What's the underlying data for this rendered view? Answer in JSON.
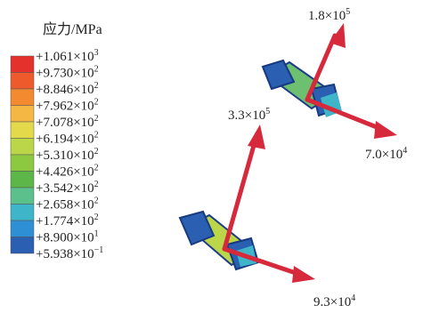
{
  "legend": {
    "title": "应力/MPa",
    "labels": [
      {
        "mantissa": "+1.061×10",
        "exponent": "3"
      },
      {
        "mantissa": "+9.730×10",
        "exponent": "2"
      },
      {
        "mantissa": "+8.846×10",
        "exponent": "2"
      },
      {
        "mantissa": "+7.962×10",
        "exponent": "2"
      },
      {
        "mantissa": "+7.078×10",
        "exponent": "2"
      },
      {
        "mantissa": "+6.194×10",
        "exponent": "2"
      },
      {
        "mantissa": "+5.310×10",
        "exponent": "2"
      },
      {
        "mantissa": "+4.426×10",
        "exponent": "2"
      },
      {
        "mantissa": "+3.542×10",
        "exponent": "2"
      },
      {
        "mantissa": "+2.658×10",
        "exponent": "2"
      },
      {
        "mantissa": "+1.774×10",
        "exponent": "2"
      },
      {
        "mantissa": "+8.900×10",
        "exponent": "1"
      },
      {
        "mantissa": "+5.938×10",
        "exponent": "−1"
      }
    ],
    "colors": [
      "#e5312b",
      "#ee5a2c",
      "#f48a30",
      "#f4b744",
      "#e4d94a",
      "#bcd64a",
      "#8cc940",
      "#5db648",
      "#5cc08d",
      "#3fb5c9",
      "#2e8fd5",
      "#2b5fb2"
    ]
  },
  "forces": [
    {
      "mantissa": "1.8×10",
      "exponent": "5"
    },
    {
      "mantissa": "7.0×10",
      "exponent": "4"
    },
    {
      "mantissa": "3.3×10",
      "exponent": "5"
    },
    {
      "mantissa": "9.3×10",
      "exponent": "4"
    }
  ]
}
